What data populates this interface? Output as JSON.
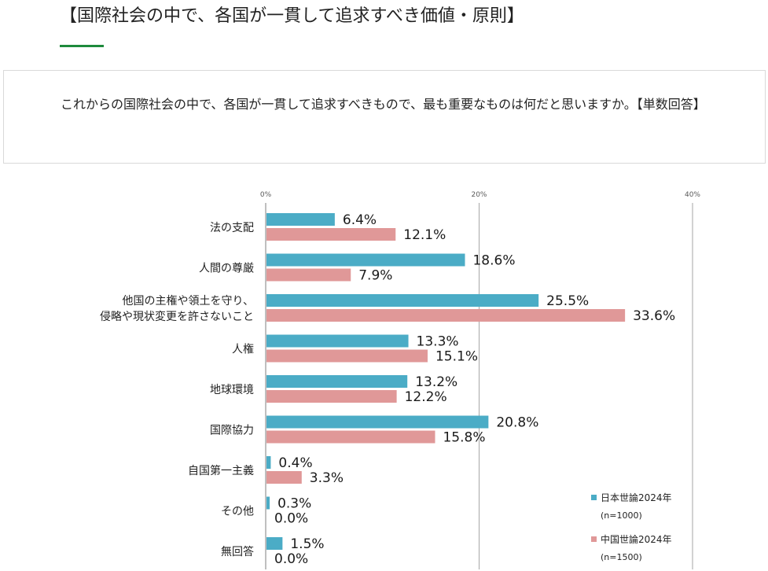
{
  "page": {
    "heading": "【国際社会の中で、各国が一貫して追求すべき価値・原則】",
    "question": "これからの国際社会の中で、各国が一貫して追求すべきもので、最も重要なものは何だと思いますか。【単数回答】"
  },
  "chart_data": {
    "type": "bar",
    "orientation": "horizontal",
    "title": "",
    "xlabel": "",
    "ylabel": "",
    "xlim": [
      0,
      40
    ],
    "x_ticks": [
      "0%",
      "20%",
      "40%"
    ],
    "grid": true,
    "legend_position": "bottom-right",
    "categories": [
      [
        "法の支配"
      ],
      [
        "人間の尊厳"
      ],
      [
        "他国の主権や領土を守り、",
        "侵略や現状変更を許さないこと"
      ],
      [
        "人権"
      ],
      [
        "地球環境"
      ],
      [
        "国際協力"
      ],
      [
        "自国第一主義"
      ],
      [
        "その他"
      ],
      [
        "無回答"
      ]
    ],
    "series": [
      {
        "name": "日本世論2024年",
        "sample": "(n=1000)",
        "color": "#4bacc6",
        "values": [
          6.4,
          18.6,
          25.5,
          13.3,
          13.2,
          20.8,
          0.4,
          0.3,
          1.5
        ],
        "labels": [
          "6.4%",
          "18.6%",
          "25.5%",
          "13.3%",
          "13.2%",
          "20.8%",
          "0.4%",
          "0.3%",
          "1.5%"
        ]
      },
      {
        "name": "中国世論2024年",
        "sample": "(n=1500)",
        "color": "#e09898",
        "values": [
          12.1,
          7.9,
          33.6,
          15.1,
          12.2,
          15.8,
          3.3,
          0.0,
          0.0
        ],
        "labels": [
          "12.1%",
          "7.9%",
          "33.6%",
          "15.1%",
          "12.2%",
          "15.8%",
          "3.3%",
          "0.0%",
          "0.0%"
        ]
      }
    ]
  }
}
